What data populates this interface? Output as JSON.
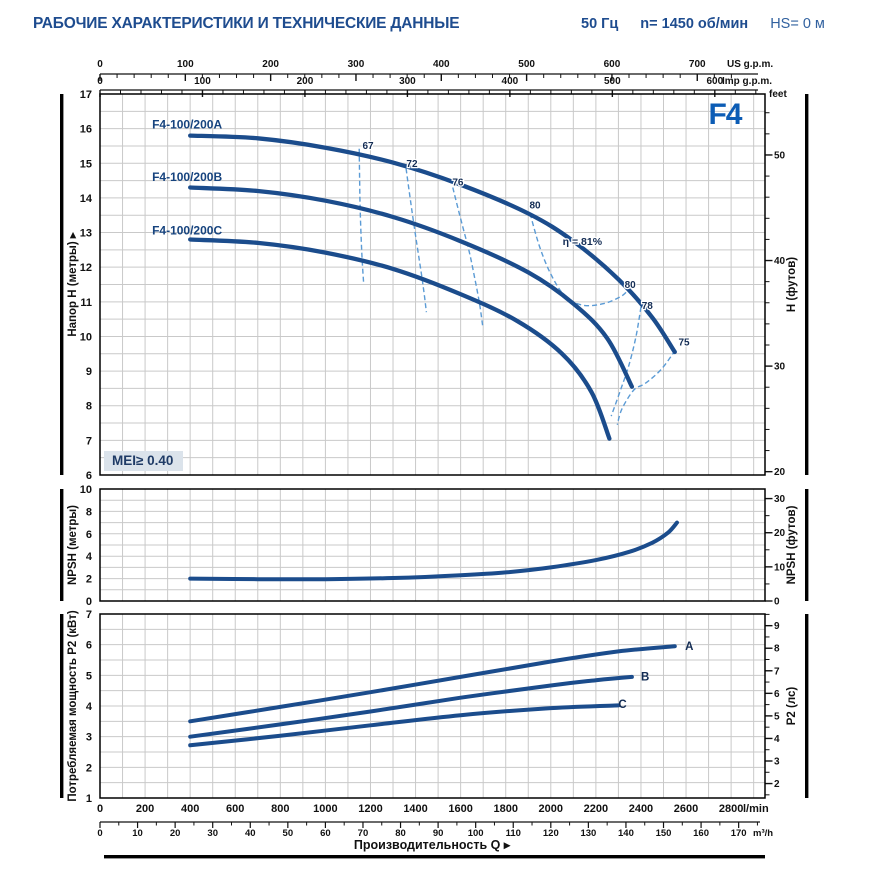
{
  "header": {
    "title": "РАБОЧИЕ ХАРАКТЕРИСТИКИ И ТЕХНИЧЕСКИЕ ДАННЫЕ",
    "frequency": "50 Гц",
    "speed": "n= 1450 об/мин",
    "suction": "HS= 0 м"
  },
  "series_label": "F4",
  "mei_label": "MEI≥ 0.40",
  "colors": {
    "curve": "#1b4c8c",
    "efficiency": "#5b9bd5",
    "grid": "#c9c9c9",
    "accent_blue": "#0c5cb5",
    "header_blue": "#1e4c8f",
    "mei_bg": "#dbe3eb",
    "text": "#111111",
    "label_dark": "#132c54"
  },
  "axes": {
    "us_gpm": {
      "unit": "US g.p.m.",
      "ticks": [
        0,
        100,
        200,
        300,
        400,
        500,
        600,
        700
      ]
    },
    "imp_gpm": {
      "unit": "Imp g.p.m.",
      "ticks": [
        0,
        100,
        200,
        300,
        400,
        500,
        600
      ]
    },
    "feet_unit": "feet",
    "head_m": {
      "label": "Напор H (метры) ▸",
      "ticks": [
        17,
        16,
        15,
        14,
        13,
        12,
        11,
        10,
        9,
        8,
        7,
        6
      ]
    },
    "head_ft": {
      "label": "H (футов)",
      "ticks": [
        50,
        40,
        30,
        20
      ]
    },
    "npsh_m": {
      "label": "NPSH (метры)",
      "ticks": [
        10,
        8,
        6,
        4,
        2,
        0
      ]
    },
    "npsh_ft": {
      "label": "NPSH (футов)",
      "ticks": [
        30,
        20,
        10,
        0
      ]
    },
    "p2_kw": {
      "label": "Потребляемая мощность P2 (кВт)",
      "ticks": [
        7,
        6,
        5,
        4,
        3,
        2,
        1
      ]
    },
    "p2_hp": {
      "label": "P2 (лс)",
      "ticks": [
        9,
        8,
        7,
        6,
        5,
        4,
        3,
        2
      ]
    },
    "lmin": {
      "unit": "l/min",
      "ticks": [
        0,
        200,
        400,
        600,
        800,
        1000,
        1200,
        1400,
        1600,
        1800,
        2000,
        2200,
        2400,
        2600,
        2800
      ]
    },
    "m3h": {
      "unit": "m³/h",
      "ticks": [
        0,
        10,
        20,
        30,
        40,
        50,
        60,
        70,
        80,
        90,
        100,
        110,
        120,
        130,
        140,
        150,
        160,
        170
      ]
    },
    "x_title": "Производительность Q ▸"
  },
  "chart_data": [
    {
      "id": "head",
      "type": "line",
      "xlabel": "Производительность Q (l/min)",
      "ylabel": "Напор H (метры)",
      "y2label": "H (футов)",
      "xlim": [
        0,
        2950
      ],
      "ylim": [
        6,
        17
      ],
      "grid": true,
      "series": [
        {
          "name": "F4-100/200A",
          "label_pos": [
            231,
            16.12
          ],
          "points": [
            [
              400,
              15.8
            ],
            [
              700,
              15.72
            ],
            [
              1000,
              15.45
            ],
            [
              1300,
              15.02
            ],
            [
              1600,
              14.38
            ],
            [
              1900,
              13.55
            ],
            [
              2100,
              12.75
            ],
            [
              2300,
              11.65
            ],
            [
              2450,
              10.55
            ],
            [
              2550,
              9.55
            ]
          ]
        },
        {
          "name": "F4-100/200B",
          "label_pos": [
            231,
            14.6
          ],
          "points": [
            [
              400,
              14.3
            ],
            [
              700,
              14.2
            ],
            [
              1000,
              13.92
            ],
            [
              1300,
              13.45
            ],
            [
              1600,
              12.75
            ],
            [
              1900,
              11.85
            ],
            [
              2100,
              10.95
            ],
            [
              2250,
              9.95
            ],
            [
              2360,
              8.55
            ]
          ]
        },
        {
          "name": "F4-100/200C",
          "label_pos": [
            231,
            13.06
          ],
          "points": [
            [
              400,
              12.8
            ],
            [
              700,
              12.7
            ],
            [
              1000,
              12.42
            ],
            [
              1300,
              11.95
            ],
            [
              1600,
              11.22
            ],
            [
              1850,
              10.45
            ],
            [
              2050,
              9.5
            ],
            [
              2180,
              8.4
            ],
            [
              2260,
              7.05
            ]
          ]
        }
      ],
      "efficiency_contours": [
        {
          "labels": [
            {
              "text": "67",
              "pos": [
                1189,
                15.5
              ]
            }
          ],
          "points": [
            [
              1150,
              15.42
            ],
            [
              1152,
              14.4
            ],
            [
              1155,
              13.55
            ],
            [
              1160,
              12.6
            ],
            [
              1166,
              11.9
            ],
            [
              1170,
              11.5
            ]
          ]
        },
        {
          "labels": [
            {
              "text": "72",
              "pos": [
                1384,
                14.98
              ]
            }
          ],
          "points": [
            [
              1358,
              14.85
            ],
            [
              1378,
              13.9
            ],
            [
              1398,
              13.0
            ],
            [
              1418,
              12.15
            ],
            [
              1435,
              11.4
            ],
            [
              1448,
              10.7
            ]
          ]
        },
        {
          "labels": [
            {
              "text": "76",
              "pos": [
                1588,
                14.45
              ]
            }
          ],
          "points": [
            [
              1565,
              14.3
            ],
            [
              1602,
              13.35
            ],
            [
              1638,
              12.45
            ],
            [
              1665,
              11.6
            ],
            [
              1685,
              10.9
            ],
            [
              1698,
              10.3
            ]
          ]
        },
        {
          "labels": [
            {
              "text": "80",
              "pos": [
                1930,
                13.78
              ]
            },
            {
              "text": "80",
              "pos": [
                2352,
                11.48
              ]
            }
          ],
          "points": [
            [
              1908,
              13.55
            ],
            [
              1950,
              12.6
            ],
            [
              2000,
              11.8
            ],
            [
              2065,
              11.15
            ],
            [
              2145,
              10.9
            ],
            [
              2235,
              10.95
            ],
            [
              2310,
              11.15
            ],
            [
              2345,
              11.35
            ]
          ]
        },
        {
          "labels": [
            {
              "text": "78",
              "pos": [
                2428,
                10.88
              ]
            }
          ],
          "points": [
            [
              2400,
              10.85
            ],
            [
              2378,
              10.0
            ],
            [
              2348,
              9.2
            ],
            [
              2312,
              8.5
            ],
            [
              2268,
              7.7
            ]
          ]
        },
        {
          "labels": [
            {
              "text": "75",
              "pos": [
                2591,
                9.82
              ]
            }
          ],
          "points": [
            [
              2552,
              9.6
            ],
            [
              2490,
              9.05
            ],
            [
              2420,
              8.65
            ],
            [
              2368,
              8.45
            ],
            [
              2315,
              7.9
            ],
            [
              2295,
              7.45
            ]
          ]
        }
      ],
      "annotations": [
        {
          "text": "η = 81%",
          "pos": [
            2140,
            12.72
          ]
        }
      ]
    },
    {
      "id": "npsh",
      "type": "line",
      "ylabel": "NPSH (метры)",
      "y2label": "NPSH (футов)",
      "xlim": [
        0,
        2950
      ],
      "ylim": [
        0,
        10
      ],
      "grid": true,
      "series": [
        {
          "name": "NPSH",
          "points": [
            [
              400,
              2.0
            ],
            [
              700,
              1.95
            ],
            [
              1000,
              1.95
            ],
            [
              1300,
              2.05
            ],
            [
              1600,
              2.3
            ],
            [
              1800,
              2.55
            ],
            [
              2000,
              3.0
            ],
            [
              2200,
              3.65
            ],
            [
              2350,
              4.4
            ],
            [
              2450,
              5.2
            ],
            [
              2520,
              6.1
            ],
            [
              2560,
              7.0
            ]
          ]
        }
      ]
    },
    {
      "id": "p2",
      "type": "line",
      "ylabel": "Потребляемая мощность P2 (кВт)",
      "y2label": "P2 (лс)",
      "xlim": [
        0,
        2950
      ],
      "ylim": [
        1,
        7
      ],
      "grid": true,
      "series": [
        {
          "name": "A",
          "label_pos": [
            2596,
            5.95
          ],
          "points": [
            [
              400,
              3.5
            ],
            [
              800,
              3.97
            ],
            [
              1200,
              4.45
            ],
            [
              1600,
              4.95
            ],
            [
              2000,
              5.45
            ],
            [
              2300,
              5.78
            ],
            [
              2550,
              5.95
            ]
          ]
        },
        {
          "name": "B",
          "label_pos": [
            2400,
            4.97
          ],
          "points": [
            [
              400,
              3.0
            ],
            [
              800,
              3.4
            ],
            [
              1200,
              3.82
            ],
            [
              1600,
              4.27
            ],
            [
              2000,
              4.67
            ],
            [
              2200,
              4.84
            ],
            [
              2360,
              4.95
            ]
          ]
        },
        {
          "name": "C",
          "label_pos": [
            2300,
            4.06
          ],
          "points": [
            [
              400,
              2.72
            ],
            [
              800,
              3.03
            ],
            [
              1200,
              3.37
            ],
            [
              1600,
              3.7
            ],
            [
              2000,
              3.93
            ],
            [
              2300,
              4.02
            ]
          ]
        }
      ]
    }
  ]
}
